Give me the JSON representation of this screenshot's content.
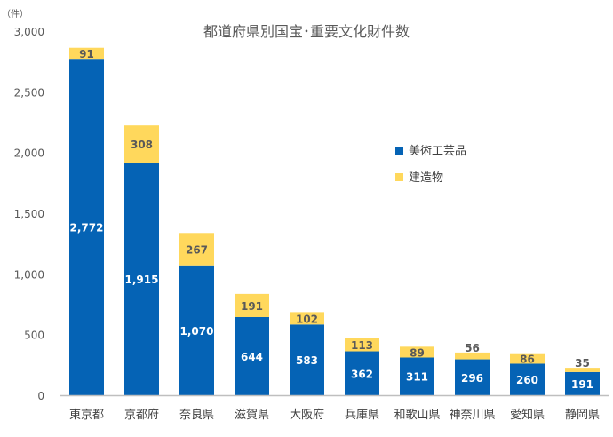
{
  "chart_data": {
    "type": "bar",
    "stacked": true,
    "title": "都道府県別国宝･重要文化財件数",
    "unit_label": "（件）",
    "categories": [
      "東京都",
      "京都府",
      "奈良県",
      "滋賀県",
      "大阪府",
      "兵庫県",
      "和歌山県",
      "神奈川県",
      "愛知県",
      "静岡県"
    ],
    "series": [
      {
        "name": "美術工芸品",
        "color": "#0563b5",
        "values": [
          2772,
          1915,
          1070,
          644,
          583,
          362,
          311,
          296,
          260,
          191
        ],
        "value_labels": [
          "2,772",
          "1,915",
          "1,070",
          "644",
          "583",
          "362",
          "311",
          "296",
          "260",
          "191"
        ]
      },
      {
        "name": "建造物",
        "color": "#ffd85c",
        "values": [
          91,
          308,
          267,
          191,
          102,
          113,
          89,
          56,
          86,
          35
        ],
        "value_labels": [
          "91",
          "308",
          "267",
          "191",
          "102",
          "113",
          "89",
          "56",
          "86",
          "35"
        ]
      }
    ],
    "ylim": [
      0,
      3000
    ],
    "yticks": [
      0,
      500,
      1000,
      1500,
      2000,
      2500,
      3000
    ],
    "ytick_labels": [
      "0",
      "500",
      "1,000",
      "1,500",
      "2,000",
      "2,500",
      "3,000"
    ],
    "grid": false,
    "legend_position": "right"
  }
}
